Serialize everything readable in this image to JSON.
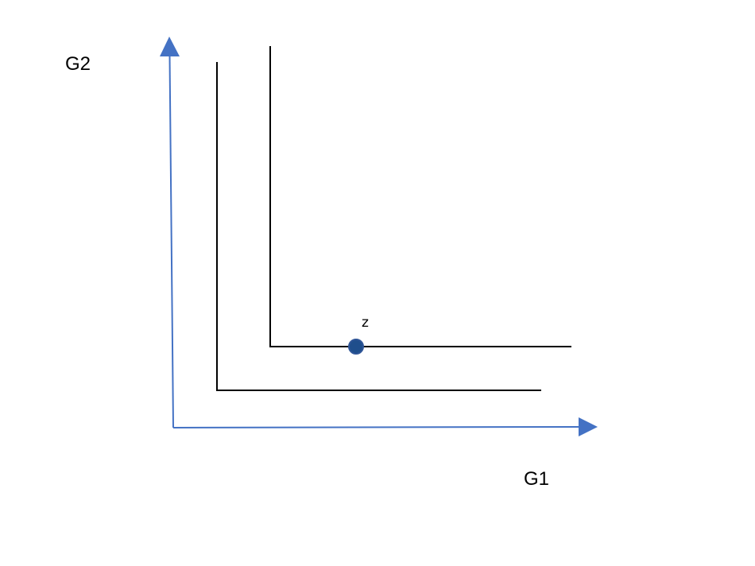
{
  "diagram": {
    "axes": {
      "x_label": "G1",
      "y_label": "G2",
      "color": "#4472C4"
    },
    "point": {
      "label": "z",
      "fill_color": "#1F4E8C",
      "stroke_color": "#2F5597"
    },
    "curve_color": "#000000"
  }
}
